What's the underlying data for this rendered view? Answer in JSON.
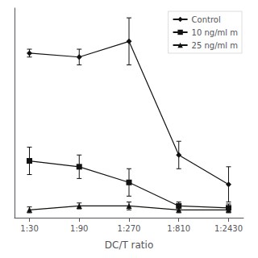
{
  "chart_data": {
    "type": "line",
    "xlabel": "DC/T ratio",
    "x": [
      0,
      1,
      2,
      3,
      4
    ],
    "xlim": [
      -0.3,
      4.3
    ],
    "xticks": [
      {
        "value": 0,
        "label": "1:30"
      },
      {
        "value": 1,
        "label": "1:90"
      },
      {
        "value": 2,
        "label": "1:270"
      },
      {
        "value": 3,
        "label": "1:810"
      },
      {
        "value": 4,
        "label": "1:2430"
      }
    ],
    "ylim": [
      -2,
      105
    ],
    "tick_labels": "x",
    "grid": false,
    "legend": "upper right",
    "series": [
      {
        "name": "Control",
        "color": "#111111",
        "marker": "diamond",
        "values": [
          82,
          80,
          88,
          30,
          15
        ],
        "yerr": [
          2,
          4,
          12,
          7,
          9
        ]
      },
      {
        "name": "10 ng/ml m",
        "color": "#111111",
        "marker": "square",
        "values": [
          27,
          24,
          16,
          4,
          3
        ],
        "yerr": [
          7,
          6,
          7,
          2,
          2
        ]
      },
      {
        "name": "25 ng/ml m",
        "color": "#111111",
        "marker": "triangle",
        "values": [
          2,
          4,
          4,
          2,
          2
        ],
        "yerr": [
          1.5,
          1.5,
          2,
          1.5,
          1.5
        ]
      }
    ]
  }
}
